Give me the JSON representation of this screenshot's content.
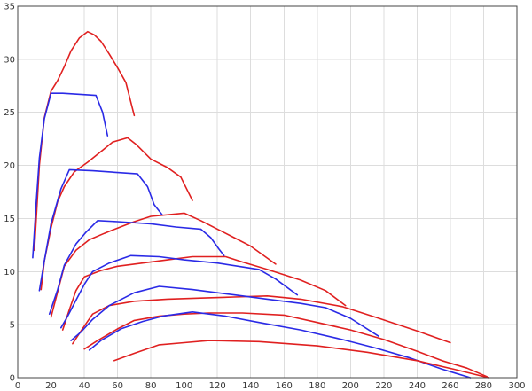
{
  "chart_data": {
    "type": "line",
    "title": "",
    "xlabel": "",
    "ylabel": "",
    "xlim": [
      0,
      300
    ],
    "ylim": [
      0,
      35
    ],
    "x_ticks": [
      0,
      20,
      40,
      60,
      80,
      100,
      120,
      140,
      160,
      180,
      200,
      220,
      240,
      260,
      280,
      300
    ],
    "y_ticks": [
      0,
      5,
      10,
      15,
      20,
      25,
      30,
      35
    ],
    "grid": true,
    "legend": "none",
    "colors": {
      "red": "#e02020",
      "blue": "#2a2ae6",
      "grid": "#dddddd",
      "axis": "#444444"
    },
    "series": [
      {
        "color": "red",
        "points": [
          [
            10,
            12
          ],
          [
            13,
            20
          ],
          [
            16,
            24.5
          ],
          [
            20,
            27
          ],
          [
            24,
            28
          ],
          [
            28,
            29.3
          ],
          [
            32,
            30.8
          ],
          [
            37,
            32
          ],
          [
            42,
            32.6
          ],
          [
            46,
            32.3
          ],
          [
            50,
            31.7
          ],
          [
            55,
            30.5
          ],
          [
            60,
            29.2
          ],
          [
            65,
            27.8
          ],
          [
            70,
            24.7
          ]
        ]
      },
      {
        "color": "blue",
        "points": [
          [
            9,
            11.3
          ],
          [
            11,
            16.2
          ],
          [
            13,
            20.7
          ],
          [
            16,
            24.4
          ],
          [
            20,
            26.8
          ],
          [
            27,
            26.8
          ],
          [
            47,
            26.6
          ],
          [
            51,
            25
          ],
          [
            54,
            22.8
          ]
        ]
      },
      {
        "color": "red",
        "points": [
          [
            14,
            8.3
          ],
          [
            16,
            11
          ],
          [
            20,
            14.1
          ],
          [
            24,
            16.6
          ],
          [
            28,
            18
          ],
          [
            34,
            19.4
          ],
          [
            42,
            20.3
          ],
          [
            50,
            21.3
          ],
          [
            57,
            22.2
          ],
          [
            66,
            22.6
          ],
          [
            71,
            22
          ],
          [
            80,
            20.6
          ],
          [
            90,
            19.8
          ],
          [
            98,
            18.9
          ],
          [
            105,
            16.7
          ]
        ]
      },
      {
        "color": "blue",
        "points": [
          [
            13,
            8.2
          ],
          [
            16,
            11
          ],
          [
            20,
            14.5
          ],
          [
            26,
            17.8
          ],
          [
            31,
            19.6
          ],
          [
            45,
            19.5
          ],
          [
            72,
            19.2
          ],
          [
            78,
            18
          ],
          [
            82,
            16.3
          ],
          [
            87,
            15.3
          ]
        ]
      },
      {
        "color": "red",
        "points": [
          [
            20,
            5.7
          ],
          [
            24,
            8.1
          ],
          [
            28,
            10.5
          ],
          [
            35,
            12
          ],
          [
            43,
            13
          ],
          [
            52,
            13.6
          ],
          [
            60,
            14.1
          ],
          [
            70,
            14.7
          ],
          [
            80,
            15.2
          ],
          [
            100,
            15.5
          ],
          [
            110,
            14.8
          ],
          [
            120,
            14
          ],
          [
            130,
            13.2
          ],
          [
            140,
            12.4
          ],
          [
            155,
            10.7
          ]
        ]
      },
      {
        "color": "blue",
        "points": [
          [
            19,
            6
          ],
          [
            24,
            8.3
          ],
          [
            28,
            10.6
          ],
          [
            35,
            12.6
          ],
          [
            41,
            13.7
          ],
          [
            48,
            14.8
          ],
          [
            60,
            14.7
          ],
          [
            80,
            14.5
          ],
          [
            95,
            14.2
          ],
          [
            110,
            14
          ],
          [
            116,
            13.2
          ],
          [
            121,
            12.1
          ],
          [
            124,
            11.5
          ]
        ]
      },
      {
        "color": "red",
        "points": [
          [
            27,
            4.5
          ],
          [
            31,
            6.4
          ],
          [
            35,
            8.2
          ],
          [
            40,
            9.5
          ],
          [
            50,
            10.1
          ],
          [
            60,
            10.5
          ],
          [
            75,
            10.8
          ],
          [
            90,
            11.1
          ],
          [
            105,
            11.4
          ],
          [
            125,
            11.4
          ],
          [
            135,
            10.9
          ],
          [
            150,
            10.2
          ],
          [
            170,
            9.2
          ],
          [
            185,
            8.2
          ],
          [
            197,
            6.8
          ]
        ]
      },
      {
        "color": "blue",
        "points": [
          [
            26,
            4.7
          ],
          [
            30,
            5.8
          ],
          [
            35,
            7.3
          ],
          [
            40,
            8.8
          ],
          [
            45,
            10
          ],
          [
            55,
            10.8
          ],
          [
            68,
            11.5
          ],
          [
            85,
            11.4
          ],
          [
            100,
            11.1
          ],
          [
            120,
            10.8
          ],
          [
            145,
            10.2
          ],
          [
            155,
            9.3
          ],
          [
            168,
            7.8
          ]
        ]
      },
      {
        "color": "red",
        "points": [
          [
            33,
            3.2
          ],
          [
            38,
            4.4
          ],
          [
            45,
            6
          ],
          [
            55,
            6.8
          ],
          [
            70,
            7.2
          ],
          [
            90,
            7.4
          ],
          [
            110,
            7.5
          ],
          [
            130,
            7.6
          ],
          [
            150,
            7.7
          ],
          [
            170,
            7.4
          ],
          [
            195,
            6.7
          ],
          [
            215,
            5.7
          ],
          [
            240,
            4.4
          ],
          [
            260,
            3.3
          ]
        ]
      },
      {
        "color": "blue",
        "points": [
          [
            32,
            3.5
          ],
          [
            38,
            4.3
          ],
          [
            45,
            5.5
          ],
          [
            55,
            6.8
          ],
          [
            70,
            8
          ],
          [
            85,
            8.6
          ],
          [
            105,
            8.3
          ],
          [
            130,
            7.8
          ],
          [
            150,
            7.4
          ],
          [
            170,
            7
          ],
          [
            185,
            6.6
          ],
          [
            200,
            5.6
          ],
          [
            217,
            3.9
          ]
        ]
      },
      {
        "color": "red",
        "points": [
          [
            40,
            2.7
          ],
          [
            48,
            3.5
          ],
          [
            60,
            4.6
          ],
          [
            70,
            5.4
          ],
          [
            85,
            5.8
          ],
          [
            100,
            6
          ],
          [
            115,
            6.1
          ],
          [
            135,
            6.1
          ],
          [
            160,
            5.9
          ],
          [
            180,
            5.2
          ],
          [
            200,
            4.5
          ],
          [
            220,
            3.6
          ],
          [
            240,
            2.5
          ],
          [
            255,
            1.6
          ],
          [
            270,
            0.9
          ],
          [
            282,
            0.1
          ]
        ]
      },
      {
        "color": "blue",
        "points": [
          [
            43,
            2.6
          ],
          [
            50,
            3.5
          ],
          [
            62,
            4.6
          ],
          [
            75,
            5.3
          ],
          [
            87,
            5.8
          ],
          [
            105,
            6.2
          ],
          [
            125,
            5.8
          ],
          [
            145,
            5.2
          ],
          [
            170,
            4.5
          ],
          [
            195,
            3.6
          ],
          [
            215,
            2.8
          ],
          [
            235,
            1.9
          ],
          [
            255,
            0.8
          ],
          [
            272,
            0
          ]
        ]
      },
      {
        "color": "red",
        "points": [
          [
            58,
            1.6
          ],
          [
            70,
            2.3
          ],
          [
            85,
            3.1
          ],
          [
            100,
            3.3
          ],
          [
            115,
            3.5
          ],
          [
            145,
            3.4
          ],
          [
            180,
            3
          ],
          [
            210,
            2.4
          ],
          [
            240,
            1.6
          ],
          [
            262,
            0.8
          ],
          [
            275,
            0.3
          ],
          [
            283,
            0
          ]
        ]
      }
    ]
  }
}
